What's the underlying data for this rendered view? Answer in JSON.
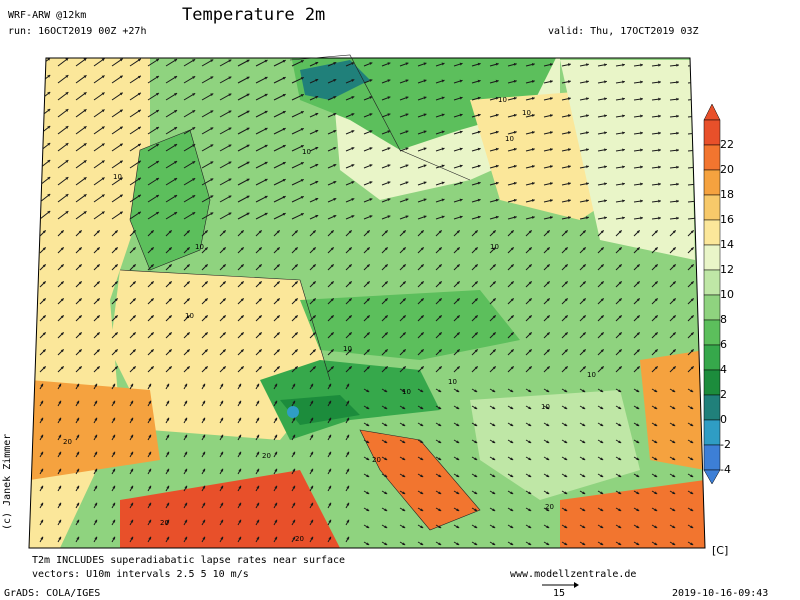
{
  "header": {
    "model": "WRF-ARW @12km",
    "run": "run: 16OCT2019 00Z +27h",
    "title": "Temperature 2m",
    "valid": "valid: Thu, 17OCT2019 03Z"
  },
  "colorbar": {
    "labels": [
      "22",
      "20",
      "18",
      "16",
      "14",
      "12",
      "10",
      "8",
      "6",
      "4",
      "2",
      "0",
      "-2",
      "-4"
    ],
    "colors": [
      "#e8502a",
      "#f2752f",
      "#f5a23f",
      "#f7c96a",
      "#fbe79a",
      "#e9f5c8",
      "#bfe7a6",
      "#8fd37f",
      "#5cbf5c",
      "#36a84b",
      "#1c8c3c",
      "#20807a",
      "#2f9dc4",
      "#3d7fd6"
    ],
    "unit": "[C]"
  },
  "footer": {
    "note1": "T2m INCLUDES superadiabatic lapse rates near surface",
    "note2": "vectors: U10m intervals 2.5 5 10 m/s",
    "vector_scale": "15",
    "website": "www.modellzentrale.de",
    "grads": "GrADS: COLA/IGES",
    "timestamp": "2019-10-16-09:43",
    "copyright": "(c) Janek Zimmer"
  },
  "map_labels": [
    "10",
    "10",
    "10",
    "10",
    "10",
    "10",
    "10",
    "10",
    "10",
    "10",
    "10",
    "10",
    "10",
    "20",
    "20",
    "20",
    "20",
    "20",
    "20"
  ],
  "colors": {
    "sea_warm": "#e8502a",
    "land_green": "#8fd37f",
    "dark_green": "#36a84b",
    "yellow": "#fbe79a"
  }
}
